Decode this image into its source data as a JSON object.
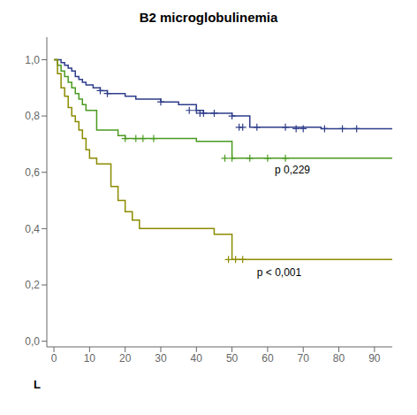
{
  "chart_data": {
    "type": "step",
    "title": "B2 microglobulinemia",
    "xlim": [
      -2,
      95
    ],
    "ylim": [
      -0.02,
      1.08
    ],
    "xticks": [
      0,
      10,
      20,
      30,
      40,
      50,
      60,
      70,
      80,
      90
    ],
    "yticks": [
      {
        "value": 0.0,
        "label": "0,0"
      },
      {
        "value": 0.2,
        "label": "0,2"
      },
      {
        "value": 0.4,
        "label": "0,4"
      },
      {
        "value": 0.6,
        "label": "0,6"
      },
      {
        "value": 0.8,
        "label": "0,8"
      },
      {
        "value": 1.0,
        "label": "1,0"
      }
    ],
    "grid": false,
    "annotations": [
      {
        "text": "p 0,229",
        "x": 62,
        "y": 0.595
      },
      {
        "text": "p < 0,001",
        "x": 57,
        "y": 0.23
      },
      {
        "text": "L"
      }
    ],
    "series": [
      {
        "type": "step",
        "color": "#2e3d8a",
        "x": [
          0,
          1,
          2,
          3,
          4,
          5,
          6,
          7,
          8,
          9,
          11,
          13,
          15,
          20,
          23,
          30,
          35,
          40,
          42,
          45,
          50,
          55,
          60,
          65,
          70,
          75,
          80,
          85,
          90,
          95
        ],
        "values": [
          1.0,
          1.0,
          0.99,
          0.98,
          0.97,
          0.96,
          0.94,
          0.93,
          0.92,
          0.91,
          0.9,
          0.89,
          0.88,
          0.87,
          0.86,
          0.85,
          0.84,
          0.82,
          0.81,
          0.81,
          0.8,
          0.76,
          0.76,
          0.76,
          0.76,
          0.755,
          0.755,
          0.755,
          0.755,
          0.755
        ]
      },
      {
        "type": "step",
        "color": "#4a9a20",
        "x": [
          0,
          1,
          2,
          3,
          4,
          5,
          6,
          7,
          8,
          9,
          10,
          12,
          14,
          16,
          18,
          20,
          22,
          24,
          40,
          45,
          50,
          55,
          60,
          65,
          70,
          75,
          80,
          85,
          90,
          95
        ],
        "values": [
          1.0,
          0.98,
          0.96,
          0.94,
          0.92,
          0.9,
          0.88,
          0.86,
          0.84,
          0.82,
          0.82,
          0.75,
          0.75,
          0.75,
          0.73,
          0.72,
          0.72,
          0.72,
          0.71,
          0.71,
          0.65,
          0.65,
          0.65,
          0.65,
          0.65,
          0.65,
          0.65,
          0.65,
          0.65,
          0.65
        ]
      },
      {
        "type": "step",
        "color": "#8b8b00",
        "x": [
          0,
          1,
          2,
          3,
          4,
          5,
          6,
          7,
          8,
          9,
          10,
          12,
          14,
          16,
          18,
          20,
          22,
          24,
          45,
          50,
          55,
          60,
          65,
          70,
          75,
          80,
          85,
          90,
          95
        ],
        "values": [
          1.0,
          0.95,
          0.9,
          0.87,
          0.83,
          0.8,
          0.78,
          0.75,
          0.72,
          0.68,
          0.65,
          0.63,
          0.63,
          0.55,
          0.5,
          0.46,
          0.43,
          0.4,
          0.38,
          0.29,
          0.29,
          0.29,
          0.29,
          0.29,
          0.29,
          0.29,
          0.29,
          0.29,
          0.29
        ]
      },
      {
        "type": "scatter",
        "marker": "+",
        "color": "#2e3d8a",
        "x": [
          13,
          15,
          30,
          38,
          40,
          41,
          42,
          45,
          50,
          52,
          53,
          57,
          65,
          68,
          70,
          76,
          81,
          85
        ],
        "values": [
          0.89,
          0.88,
          0.85,
          0.82,
          0.82,
          0.81,
          0.81,
          0.81,
          0.8,
          0.76,
          0.76,
          0.76,
          0.76,
          0.755,
          0.755,
          0.755,
          0.755,
          0.755
        ]
      },
      {
        "type": "scatter",
        "marker": "+",
        "color": "#4a9a20",
        "x": [
          20,
          23,
          25,
          28,
          48,
          50,
          55,
          60,
          65
        ],
        "values": [
          0.72,
          0.72,
          0.72,
          0.72,
          0.65,
          0.65,
          0.65,
          0.65,
          0.65
        ]
      },
      {
        "type": "scatter",
        "marker": "+",
        "color": "#8b8b00",
        "x": [
          49,
          51,
          53
        ],
        "values": [
          0.29,
          0.29,
          0.29
        ]
      }
    ]
  }
}
